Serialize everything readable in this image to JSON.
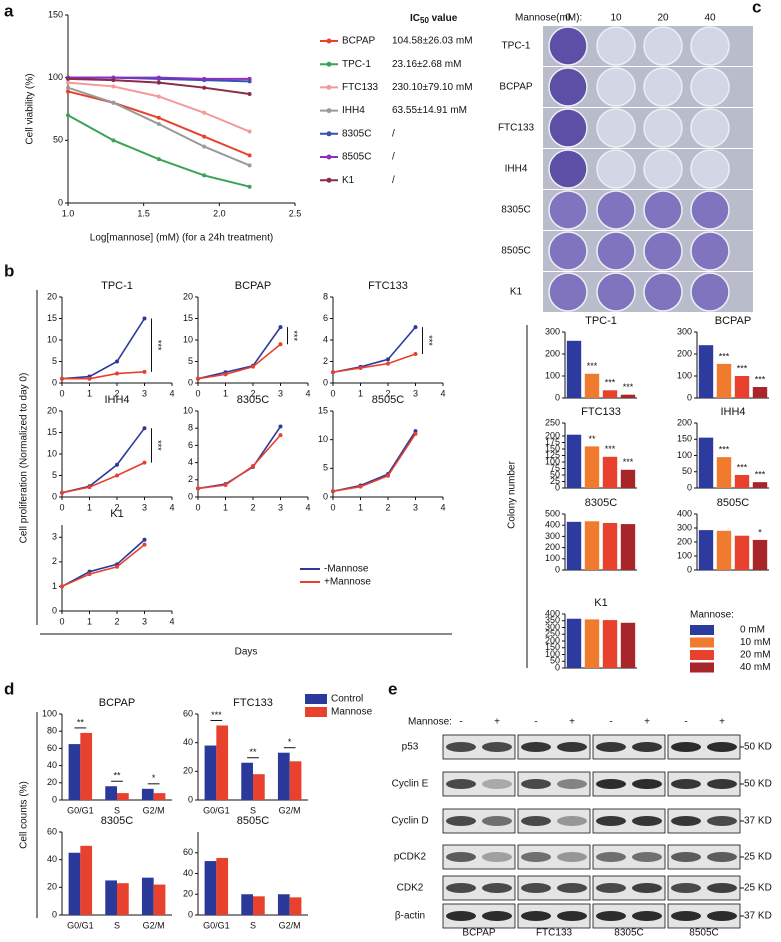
{
  "panel_labels": [
    "a",
    "b",
    "c",
    "d",
    "e"
  ],
  "chart_data": [
    {
      "type": "line",
      "xlabel": "Log[mannose] (mM) (for a 24h treatment)",
      "ylabel": "Cell viability (%)",
      "x": [
        1.0,
        1.3,
        1.6,
        1.9,
        2.2
      ],
      "xlim": [
        1.0,
        2.5
      ],
      "xticks": [
        {
          "value": 1.0,
          "label": "1.0"
        },
        1.5,
        {
          "value": 2.0,
          "label": "2.0"
        },
        2.5
      ],
      "ylim": [
        0,
        150
      ],
      "yticks": [
        0,
        50,
        100,
        150
      ],
      "legend_title": {
        "text": "IC",
        "subscript": "50",
        "suffix": " value"
      },
      "series": [
        {
          "name": "BCPAP",
          "color": "#e8412e",
          "ic50": "104.58±26.03 mM",
          "values": [
            89,
            80,
            68,
            53,
            38
          ]
        },
        {
          "name": "TPC-1",
          "color": "#3aa35a",
          "ic50": "23.16±2.68 mM",
          "values": [
            70,
            50,
            35,
            22,
            13
          ]
        },
        {
          "name": "FTC133",
          "color": "#f59a9a",
          "ic50": "230.10±79.10 mM",
          "values": [
            96,
            93,
            85,
            72,
            57
          ]
        },
        {
          "name": "IHH4",
          "color": "#9a9a9a",
          "ic50": "63.55±14.91 mM",
          "values": [
            92,
            80,
            63,
            45,
            30
          ]
        },
        {
          "name": "8305C",
          "color": "#3552b8",
          "ic50": "/",
          "values": [
            100,
            100,
            99,
            98,
            97
          ]
        },
        {
          "name": "8505C",
          "color": "#8a2fbf",
          "ic50": "/",
          "values": [
            100,
            100,
            100,
            99,
            99
          ]
        },
        {
          "name": "K1",
          "color": "#8b2b4a",
          "ic50": "/",
          "values": [
            99,
            98,
            96,
            92,
            87
          ]
        }
      ]
    },
    {
      "type": "line",
      "title": "TPC-1",
      "annotation": "***",
      "x": [
        0,
        1,
        2,
        3
      ],
      "xlim": [
        0,
        4
      ],
      "xticks": [
        0,
        1,
        2,
        3,
        4
      ],
      "ylim": [
        0,
        20
      ],
      "yticks": [
        0,
        5,
        10,
        15,
        20
      ],
      "series": [
        {
          "values": [
            1,
            1.5,
            5,
            15
          ]
        },
        {
          "values": [
            1,
            1,
            2.2,
            2.6
          ]
        }
      ]
    },
    {
      "type": "line",
      "title": "BCPAP",
      "annotation": "***",
      "x": [
        0,
        1,
        2,
        3
      ],
      "xlim": [
        0,
        4
      ],
      "xticks": [
        0,
        1,
        2,
        3,
        4
      ],
      "ylim": [
        0,
        20
      ],
      "yticks": [
        0,
        5,
        10,
        15,
        20
      ],
      "series": [
        {
          "values": [
            1,
            2.5,
            4,
            13
          ]
        },
        {
          "values": [
            1,
            2,
            3.8,
            9
          ]
        }
      ]
    },
    {
      "type": "line",
      "title": "FTC133",
      "annotation": "***",
      "x": [
        0,
        1,
        2,
        3
      ],
      "xlim": [
        0,
        4
      ],
      "xticks": [
        0,
        1,
        2,
        3,
        4
      ],
      "ylim": [
        0,
        8
      ],
      "yticks": [
        0,
        2,
        4,
        6,
        8
      ],
      "series": [
        {
          "values": [
            1,
            1.5,
            2.2,
            5.2
          ]
        },
        {
          "values": [
            1,
            1.4,
            1.8,
            2.7
          ]
        }
      ]
    },
    {
      "type": "line",
      "title": "IHH4",
      "annotation": "***",
      "x": [
        0,
        1,
        2,
        3
      ],
      "xlim": [
        0,
        4
      ],
      "xticks": [
        0,
        1,
        2,
        3,
        4
      ],
      "ylim": [
        0,
        20
      ],
      "yticks": [
        0,
        5,
        10,
        15,
        20
      ],
      "series": [
        {
          "values": [
            1,
            2.5,
            7.5,
            16
          ]
        },
        {
          "values": [
            1,
            2.3,
            5,
            8
          ]
        }
      ]
    },
    {
      "type": "line",
      "title": "8305C",
      "x": [
        0,
        1,
        2,
        3
      ],
      "xlim": [
        0,
        4
      ],
      "xticks": [
        0,
        1,
        2,
        3,
        4
      ],
      "ylim": [
        0,
        10
      ],
      "yticks": [
        0,
        2,
        4,
        6,
        8,
        10
      ],
      "series": [
        {
          "values": [
            1,
            1.5,
            3.5,
            8.2
          ]
        },
        {
          "values": [
            1,
            1.4,
            3.6,
            7.2
          ]
        }
      ]
    },
    {
      "type": "line",
      "title": "8505C",
      "x": [
        0,
        1,
        2,
        3
      ],
      "xlim": [
        0,
        4
      ],
      "xticks": [
        0,
        1,
        2,
        3,
        4
      ],
      "ylim": [
        0,
        15
      ],
      "yticks": [
        0,
        5,
        10,
        15
      ],
      "series": [
        {
          "values": [
            1,
            2,
            4,
            11.5
          ]
        },
        {
          "values": [
            1,
            1.8,
            3.7,
            11
          ]
        }
      ]
    },
    {
      "type": "line",
      "title": "K1",
      "x": [
        0,
        1,
        2,
        3
      ],
      "xlim": [
        0,
        4
      ],
      "xticks": [
        0,
        1,
        2,
        3,
        4
      ],
      "ylim": [
        0,
        3.5
      ],
      "yticks": [
        0,
        1,
        2,
        3
      ],
      "series": [
        {
          "values": [
            1,
            1.6,
            1.9,
            2.9
          ]
        },
        {
          "values": [
            1,
            1.5,
            1.8,
            2.7
          ]
        }
      ]
    },
    {
      "type": "bar",
      "title": "TPC-1",
      "values": [
        260,
        110,
        35,
        15
      ],
      "ylim": [
        0,
        300
      ],
      "yticks": [
        0,
        100,
        200,
        300
      ],
      "annotations": [
        {
          "index": 1,
          "text": "***"
        },
        {
          "index": 2,
          "text": "***"
        },
        {
          "index": 3,
          "text": "***"
        }
      ]
    },
    {
      "type": "bar",
      "title": "BCPAP",
      "values": [
        240,
        155,
        100,
        50
      ],
      "ylim": [
        0,
        300
      ],
      "yticks": [
        0,
        100,
        200,
        300
      ],
      "annotations": [
        {
          "index": 1,
          "text": "***"
        },
        {
          "index": 2,
          "text": "***"
        },
        {
          "index": 3,
          "text": "***"
        }
      ]
    },
    {
      "type": "bar",
      "title": "FTC133",
      "values": [
        205,
        160,
        120,
        70
      ],
      "ylim": [
        0,
        250
      ],
      "yticks": [
        0,
        25,
        50,
        75,
        100,
        125,
        150,
        175,
        200,
        250
      ],
      "annotations": [
        {
          "index": 1,
          "text": "**"
        },
        {
          "index": 2,
          "text": "***"
        },
        {
          "index": 3,
          "text": "***"
        }
      ]
    },
    {
      "type": "bar",
      "title": "IHH4",
      "values": [
        155,
        95,
        40,
        18
      ],
      "ylim": [
        0,
        200
      ],
      "yticks": [
        0,
        50,
        100,
        150,
        200
      ],
      "annotations": [
        {
          "index": 1,
          "text": "***"
        },
        {
          "index": 2,
          "text": "***"
        },
        {
          "index": 3,
          "text": "***"
        }
      ]
    },
    {
      "type": "bar",
      "title": "8305C",
      "values": [
        430,
        435,
        420,
        410
      ],
      "ylim": [
        0,
        500
      ],
      "yticks": [
        0,
        100,
        200,
        300,
        400,
        500
      ]
    },
    {
      "type": "bar",
      "title": "8505C",
      "values": [
        285,
        280,
        245,
        215
      ],
      "ylim": [
        0,
        400
      ],
      "yticks": [
        0,
        100,
        200,
        300,
        400
      ],
      "annotations": [
        {
          "index": 3,
          "text": "*"
        }
      ]
    },
    {
      "type": "bar",
      "title": "K1",
      "values": [
        365,
        360,
        355,
        335
      ],
      "ylim": [
        0,
        400
      ],
      "yticks": [
        0,
        50,
        100,
        150,
        200,
        250,
        300,
        350,
        400
      ]
    },
    {
      "type": "bar",
      "title": "BCPAP",
      "categories": [
        "G0/G1",
        "S",
        "G2/M"
      ],
      "ylim": [
        0,
        100
      ],
      "yticks": [
        0,
        20,
        40,
        60,
        80,
        100
      ],
      "series": [
        {
          "values": [
            65,
            16,
            13
          ]
        },
        {
          "values": [
            78,
            8,
            8
          ]
        }
      ],
      "annotations": [
        {
          "index": 0,
          "text": "**"
        },
        {
          "index": 1,
          "text": "**"
        },
        {
          "index": 2,
          "text": "*"
        }
      ]
    },
    {
      "type": "bar",
      "title": "FTC133",
      "categories": [
        "G0/G1",
        "S",
        "G2/M"
      ],
      "ylim": [
        0,
        60
      ],
      "yticks": [
        0,
        20,
        40,
        60
      ],
      "series": [
        {
          "values": [
            38,
            26,
            33
          ]
        },
        {
          "values": [
            52,
            18,
            27
          ]
        }
      ],
      "annotations": [
        {
          "index": 0,
          "text": "***"
        },
        {
          "index": 1,
          "text": "**"
        },
        {
          "index": 2,
          "text": "*"
        }
      ]
    },
    {
      "type": "bar",
      "title": "8305C",
      "categories": [
        "G0/G1",
        "S",
        "G2/M"
      ],
      "ylim": [
        0,
        60
      ],
      "yticks": [
        0,
        20,
        40,
        60
      ],
      "series": [
        {
          "values": [
            45,
            25,
            27
          ]
        },
        {
          "values": [
            50,
            23,
            22
          ]
        }
      ]
    },
    {
      "type": "bar",
      "title": "8505C",
      "categories": [
        "G0/G1",
        "S",
        "G2/M"
      ],
      "ylim": [
        0,
        80
      ],
      "yticks": [
        0,
        20,
        40,
        60
      ],
      "series": [
        {
          "values": [
            52,
            20,
            20
          ]
        },
        {
          "values": [
            55,
            18,
            17
          ]
        }
      ]
    }
  ],
  "proliferation": {
    "ylabel": "Cell proliferation (Normalized to day 0)",
    "xlabel": "Days",
    "legend": [
      {
        "name": "-Mannose",
        "color": "#2b3a9a"
      },
      {
        "name": "+Mannose",
        "color": "#e8412e"
      }
    ]
  },
  "colony": {
    "ylabel": "Colony number",
    "legend_title": "Mannose:",
    "legend": [
      {
        "name": "0 mM",
        "color": "#2e3b9e"
      },
      {
        "name": "10 mM",
        "color": "#f07a2e"
      },
      {
        "name": "20 mM",
        "color": "#e8412e"
      },
      {
        "name": "40 mM",
        "color": "#a8252a"
      }
    ]
  },
  "cell_cycle": {
    "ylabel": "Cell counts (%)",
    "legend": [
      {
        "name": "Control",
        "color": "#2b3a9a"
      },
      {
        "name": "Mannose",
        "color": "#e8412e"
      }
    ]
  },
  "plates": {
    "header": "Mannose(mM):",
    "doses": [
      "0",
      "10",
      "20",
      "40"
    ],
    "rows": [
      "TPC-1",
      "BCPAP",
      "FTC133",
      "IHH4",
      "8305C",
      "8505C",
      "K1"
    ]
  },
  "western": {
    "mannose_label": "Mannose:",
    "signs": [
      "-",
      "+"
    ],
    "proteins": [
      "p53",
      "Cyclin E",
      "Cyclin D",
      "pCDK2",
      "CDK2",
      "β-actin"
    ],
    "sizes": [
      "50 KD",
      "50 KD",
      "37 KD",
      "25 KD",
      "25 KD",
      "37 KD"
    ],
    "cell_lines": [
      "BCPAP",
      "FTC133",
      "8305C",
      "8505C"
    ]
  }
}
